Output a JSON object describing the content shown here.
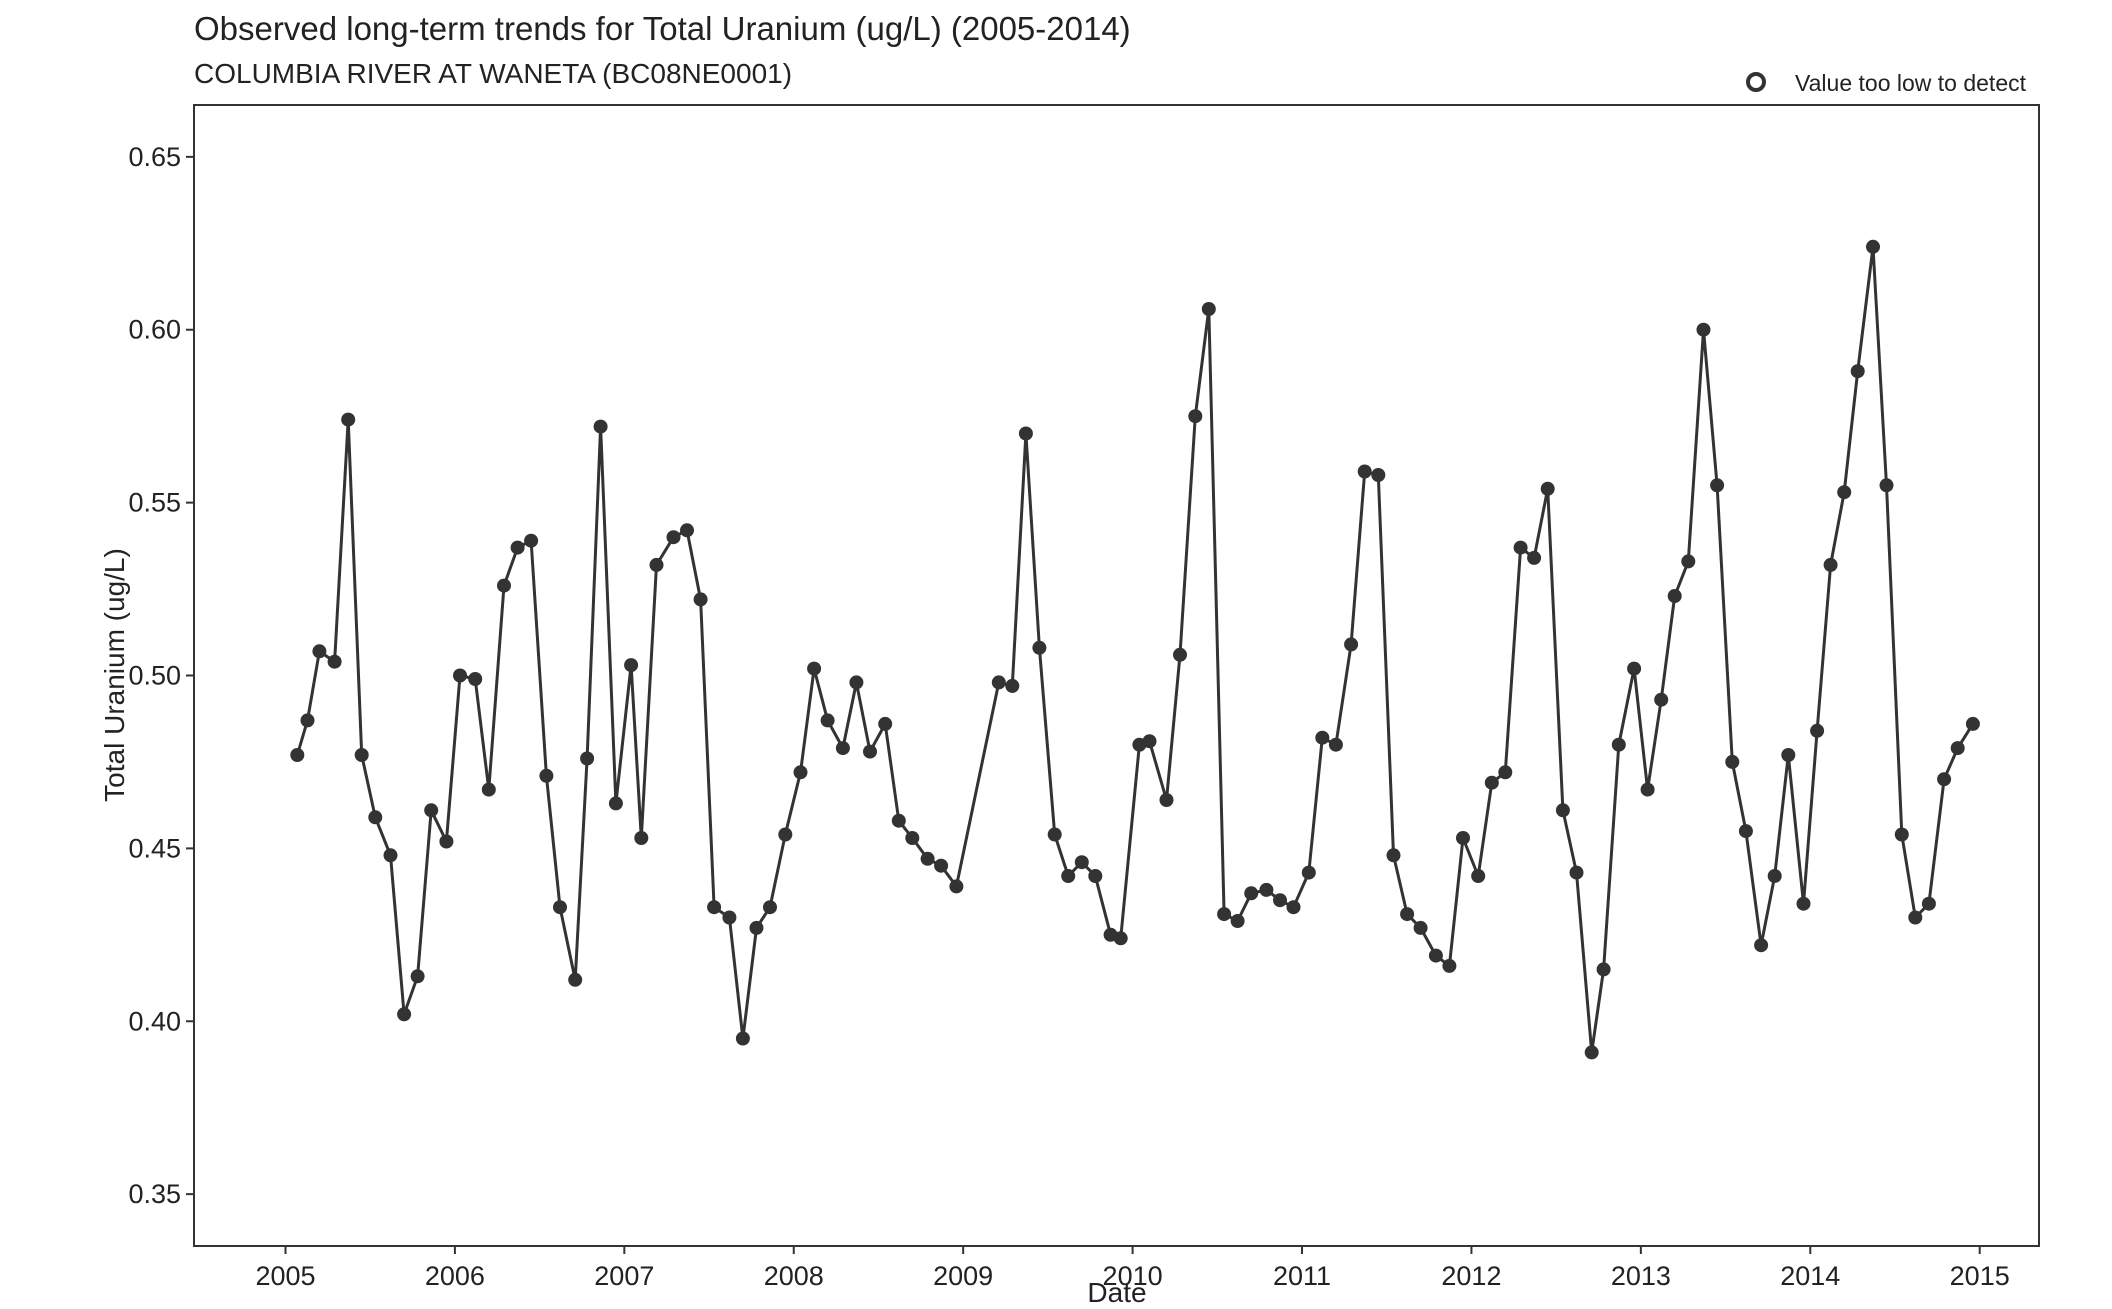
{
  "chart_data": {
    "type": "line",
    "title": "Observed long-term trends for Total Uranium (ug/L) (2005-2014)",
    "subtitle": "COLUMBIA RIVER AT WANETA (BC08NE0001)",
    "xlabel": "Date",
    "ylabel": "Total Uranium (ug/L)",
    "xlim": [
      2004.46,
      2015.35
    ],
    "ylim": [
      0.335,
      0.665
    ],
    "xticks": [
      "2005",
      "2006",
      "2007",
      "2008",
      "2009",
      "2010",
      "2011",
      "2012",
      "2013",
      "2014",
      "2015"
    ],
    "yticks": [
      "0.35",
      "0.40",
      "0.45",
      "0.50",
      "0.55",
      "0.60",
      "0.65"
    ],
    "grid": false,
    "legend": {
      "position": "top-right",
      "entries": [
        {
          "label": "Value too low to detect",
          "marker": "open-circle"
        }
      ]
    },
    "colors": {
      "line": "#333333",
      "marker": "#333333",
      "frame": "#333333"
    },
    "series": [
      {
        "x": [
          2005.07,
          2005.13,
          2005.2,
          2005.29,
          2005.37,
          2005.45,
          2005.53,
          2005.62,
          2005.7,
          2005.78,
          2005.86,
          2005.95,
          2006.03,
          2006.12,
          2006.2,
          2006.29,
          2006.37,
          2006.45,
          2006.54,
          2006.62,
          2006.71,
          2006.78,
          2006.86,
          2006.95,
          2007.04,
          2007.1,
          2007.19,
          2007.29,
          2007.37,
          2007.45,
          2007.53,
          2007.62,
          2007.7,
          2007.78,
          2007.86,
          2007.95,
          2008.04,
          2008.12,
          2008.2,
          2008.29,
          2008.37,
          2008.45,
          2008.54,
          2008.62,
          2008.7,
          2008.79,
          2008.87,
          2008.96,
          2009.21,
          2009.29,
          2009.37,
          2009.45,
          2009.54,
          2009.62,
          2009.7,
          2009.78,
          2009.87,
          2009.93,
          2010.04,
          2010.1,
          2010.2,
          2010.28,
          2010.37,
          2010.45,
          2010.54,
          2010.62,
          2010.7,
          2010.79,
          2010.87,
          2010.95,
          2011.04,
          2011.12,
          2011.2,
          2011.29,
          2011.37,
          2011.45,
          2011.54,
          2011.62,
          2011.7,
          2011.79,
          2011.87,
          2011.95,
          2012.04,
          2012.12,
          2012.2,
          2012.29,
          2012.37,
          2012.45,
          2012.54,
          2012.62,
          2012.71,
          2012.78,
          2012.87,
          2012.96,
          2013.04,
          2013.12,
          2013.2,
          2013.28,
          2013.37,
          2013.45,
          2013.54,
          2013.62,
          2013.71,
          2013.79,
          2013.87,
          2013.96,
          2014.04,
          2014.12,
          2014.2,
          2014.28,
          2014.37,
          2014.45,
          2014.54,
          2014.62,
          2014.7,
          2014.79,
          2014.87,
          2014.96
        ],
        "y": [
          0.477,
          0.487,
          0.507,
          0.504,
          0.574,
          0.477,
          0.459,
          0.448,
          0.402,
          0.413,
          0.461,
          0.452,
          0.5,
          0.499,
          0.467,
          0.526,
          0.537,
          0.539,
          0.471,
          0.433,
          0.412,
          0.476,
          0.572,
          0.463,
          0.503,
          0.453,
          0.532,
          0.54,
          0.542,
          0.522,
          0.433,
          0.43,
          0.395,
          0.427,
          0.433,
          0.454,
          0.472,
          0.502,
          0.487,
          0.479,
          0.498,
          0.478,
          0.486,
          0.458,
          0.453,
          0.447,
          0.445,
          0.439,
          0.498,
          0.497,
          0.57,
          0.508,
          0.454,
          0.442,
          0.446,
          0.442,
          0.425,
          0.424,
          0.48,
          0.481,
          0.464,
          0.506,
          0.575,
          0.606,
          0.431,
          0.429,
          0.437,
          0.438,
          0.435,
          0.433,
          0.443,
          0.482,
          0.48,
          0.509,
          0.559,
          0.558,
          0.448,
          0.431,
          0.427,
          0.419,
          0.416,
          0.453,
          0.442,
          0.469,
          0.472,
          0.537,
          0.534,
          0.554,
          0.461,
          0.443,
          0.391,
          0.415,
          0.48,
          0.502,
          0.467,
          0.493,
          0.523,
          0.533,
          0.6,
          0.555,
          0.475,
          0.455,
          0.422,
          0.442,
          0.477,
          0.434,
          0.484,
          0.532,
          0.553,
          0.588,
          0.624,
          0.555,
          0.454,
          0.43,
          0.434,
          0.47,
          0.479,
          0.486
        ]
      }
    ]
  }
}
